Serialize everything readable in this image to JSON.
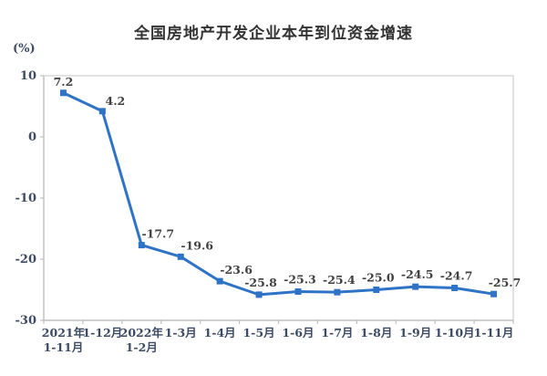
{
  "chart_data": {
    "type": "line",
    "title": "全国房地产开发企业本年到位资金增速",
    "ylabel": "(%)",
    "xlabel": "",
    "categories": [
      "2021年\n1-11月",
      "1-12月",
      "2022年\n1-2月",
      "1-3月",
      "1-4月",
      "1-5月",
      "1-6月",
      "1-7月",
      "1-8月",
      "1-9月",
      "1-10月",
      "1-11月"
    ],
    "values": [
      7.2,
      4.2,
      -17.7,
      -19.6,
      -23.6,
      -25.8,
      -25.3,
      -25.4,
      -25.0,
      -24.5,
      -24.7,
      -25.7
    ],
    "data_labels": [
      "7.2",
      "4.2",
      "-17.7",
      "-19.6",
      "-23.6",
      "-25.8",
      "-25.3",
      "-25.4",
      "-25.0",
      "-24.5",
      "-24.7",
      "-25.7"
    ],
    "ylim": [
      -30,
      10
    ],
    "yticks": [
      10,
      0,
      -10,
      -20,
      -30
    ],
    "grid": false,
    "legend": "none",
    "marker": "square",
    "line_color": "#2E73C5",
    "axis_text_color": "#3C4A63",
    "value_text_color": "#404040",
    "plot_border_color": "#D9D9D9",
    "axis_line_color": "#BFBFBF",
    "background_color": "#FFFFFF"
  }
}
